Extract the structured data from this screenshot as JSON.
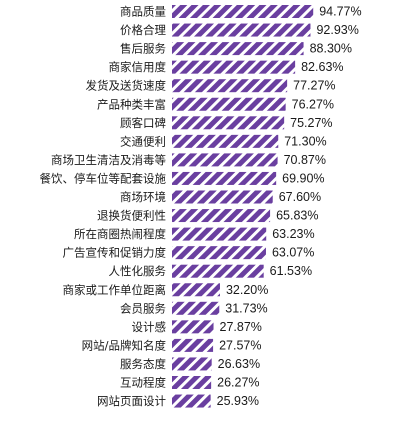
{
  "chart_data": {
    "type": "bar",
    "orientation": "horizontal",
    "title": "",
    "xlabel": "",
    "ylabel": "",
    "xlim": [
      0,
      100
    ],
    "grid": false,
    "legend": "none",
    "bar_color": "#6a3fa0",
    "stripe_color": "#ffffff",
    "bar_pattern": "diagonal-stripes",
    "categories": [
      "商品质量",
      "价格合理",
      "售后服务",
      "商家信用度",
      "发货及送货速度",
      "产品种类丰富",
      "顾客口碑",
      "交通便利",
      "商场卫生清洁及消毒等",
      "餐饮、停车位等配套设施",
      "商场环境",
      "退换货便利性",
      "所在商圈热闹程度",
      "广告宣传和促销力度",
      "人性化服务",
      "商家或工作单位距离",
      "会员服务",
      "设计感",
      "网站/品牌知名度",
      "服务态度",
      "互动程度",
      "网站页面设计"
    ],
    "values": [
      94.77,
      92.93,
      88.3,
      82.63,
      77.27,
      76.27,
      75.27,
      71.3,
      70.87,
      69.9,
      67.6,
      65.83,
      63.23,
      63.07,
      61.53,
      32.2,
      31.73,
      27.87,
      27.57,
      26.63,
      26.27,
      25.93
    ],
    "value_labels": [
      "94.77%",
      "92.93%",
      "88.30%",
      "82.63%",
      "77.27%",
      "76.27%",
      "75.27%",
      "71.30%",
      "70.87%",
      "69.90%",
      "67.60%",
      "65.83%",
      "63.23%",
      "63.07%",
      "61.53%",
      "32.20%",
      "31.73%",
      "27.87%",
      "27.57%",
      "26.63%",
      "26.27%",
      "25.93%"
    ]
  }
}
